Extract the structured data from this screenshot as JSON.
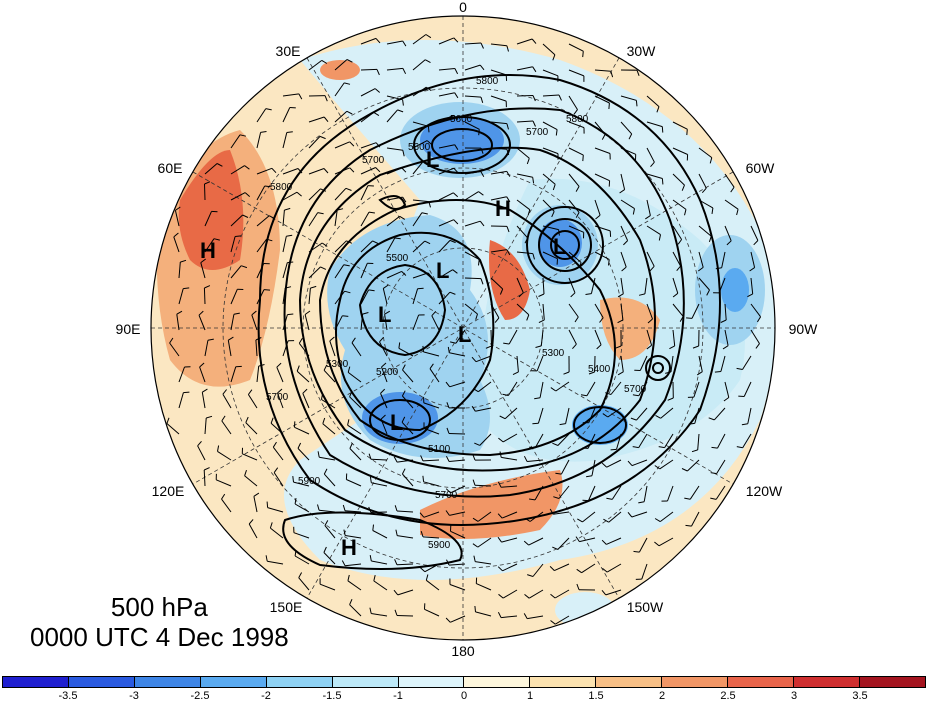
{
  "title": {
    "level": "500 hPa",
    "time": "0000 UTC 4 Dec 1998"
  },
  "map": {
    "projection": "north-polar-stereographic",
    "longitude_labels": [
      {
        "text": "0",
        "lon": 0
      },
      {
        "text": "30E",
        "lon": 30
      },
      {
        "text": "60E",
        "lon": 60
      },
      {
        "text": "90E",
        "lon": 90
      },
      {
        "text": "120E",
        "lon": 120
      },
      {
        "text": "150E",
        "lon": 150
      },
      {
        "text": "180",
        "lon": 180
      },
      {
        "text": "150W",
        "lon": -150
      },
      {
        "text": "120W",
        "lon": -120
      },
      {
        "text": "90W",
        "lon": -90
      },
      {
        "text": "60W",
        "lon": -60
      },
      {
        "text": "30W",
        "lon": -30
      }
    ],
    "pressure_centers": [
      {
        "type": "H",
        "name": "high-siberia"
      },
      {
        "type": "L",
        "name": "low-europe"
      },
      {
        "type": "H",
        "name": "high-atlantic"
      },
      {
        "type": "L",
        "name": "low-greenland"
      },
      {
        "type": "L",
        "name": "low-kara"
      },
      {
        "type": "L",
        "name": "low-taymyr"
      },
      {
        "type": "L",
        "name": "low-pole"
      },
      {
        "type": "L",
        "name": "low-east-siberia"
      },
      {
        "type": "H",
        "name": "high-pacific"
      }
    ],
    "contour_labels": [
      "5800",
      "5600",
      "5700",
      "5600",
      "5700",
      "5800",
      "5500",
      "5300",
      "5200",
      "5100",
      "5700",
      "5900",
      "5300",
      "5400",
      "5700",
      "5900",
      "5800",
      "5700"
    ],
    "anomaly_colors": {
      "strong_neg": "#4f95e8",
      "neg": "#9fd3f0",
      "weak_neg": "#d8f0f8",
      "weak_pos": "#fbe7c2",
      "pos": "#f4b07c",
      "strong_pos": "#e86a46"
    }
  },
  "colorbar": {
    "colors": [
      "#1f1fd0",
      "#2a5ae0",
      "#3e85e6",
      "#5aaaf0",
      "#8fd2f4",
      "#bde9f8",
      "#ddf4fb",
      "#fdf6dc",
      "#fbe2b0",
      "#f7bf86",
      "#f19666",
      "#e8644a",
      "#cf2f30",
      "#a4141f"
    ],
    "tick_labels": [
      "-3.5",
      "-3",
      "-2.5",
      "-2",
      "-1.5",
      "-1",
      "0",
      "1",
      "1.5",
      "2",
      "2.5",
      "3",
      "3.5"
    ]
  }
}
